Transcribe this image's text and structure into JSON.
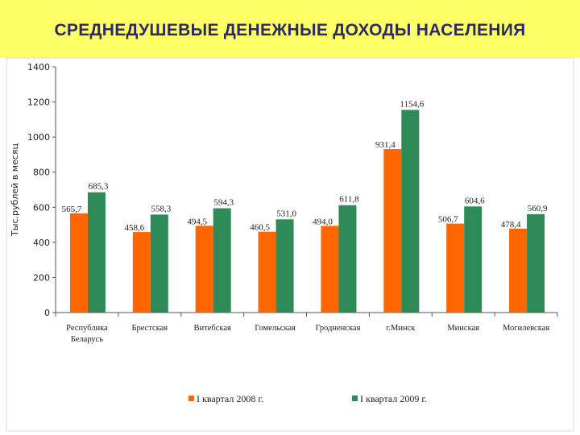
{
  "title": "СРЕДНЕДУШЕВЫЕ ДЕНЕЖНЫЕ ДОХОДЫ НАСЕЛЕНИЯ",
  "colors": {
    "title_bg": "#ffff66",
    "title_text": "#2a2a6a",
    "series_2008": "#ff6600",
    "series_2009": "#2e8b57"
  },
  "chart_data": {
    "type": "bar",
    "ylabel": "Тыс.рублей в месяц",
    "xlabel": "",
    "ylim": [
      0,
      1400
    ],
    "yticks": [
      0,
      200,
      400,
      600,
      800,
      1000,
      1200,
      1400
    ],
    "grid": false,
    "legend_position": "bottom",
    "categories": [
      [
        "Республика",
        "Беларусь"
      ],
      [
        "Брестская"
      ],
      [
        "Витебская"
      ],
      [
        "Гомельская"
      ],
      [
        "Гродненская"
      ],
      [
        "г.Минск"
      ],
      [
        "Минская"
      ],
      [
        "Могилевская"
      ]
    ],
    "series": [
      {
        "name": "I квартал 2008 г.",
        "color": "#ff6600",
        "values": [
          565.7,
          458.6,
          494.5,
          460.5,
          494.0,
          931.4,
          506.7,
          478.4
        ],
        "labels": [
          "565,7",
          "458,6",
          "494,5",
          "460,5",
          "494,0",
          "931,4",
          "506,7",
          "478,4"
        ]
      },
      {
        "name": "I квартал 2009 г.",
        "color": "#2e8b57",
        "values": [
          685.3,
          558.3,
          594.3,
          531.0,
          611.8,
          1154.6,
          604.6,
          560.9
        ],
        "labels": [
          "685,3",
          "558,3",
          "594,3",
          "531,0",
          "611,8",
          "1154,6",
          "604,6",
          "560,9"
        ]
      }
    ]
  }
}
